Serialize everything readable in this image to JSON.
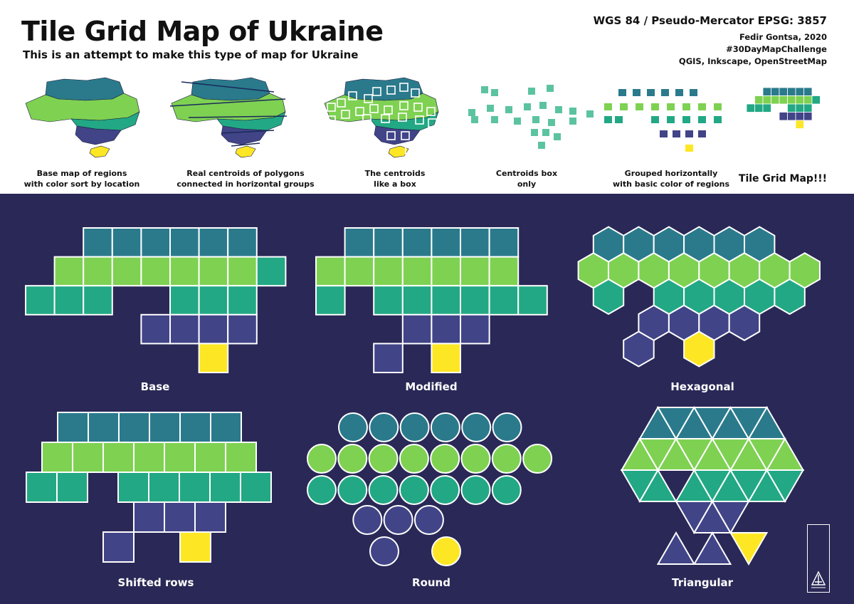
{
  "title": "Tile Grid Map of Ukraine",
  "subtitle": "This is an attempt to make this type of map for Ukraine",
  "credits": {
    "crs": "WGS 84 / Pseudo-Mercator EPSG: 3857",
    "author": "Fedir Gontsa, 2020",
    "challenge": "#30DayMapChallenge",
    "tools": "QGIS, Inkscape, OpenStreetMap"
  },
  "colors": {
    "north": "#2a7a8c",
    "central": "#7fd152",
    "west_south": "#22a884",
    "east_south": "#414487",
    "crimea": "#fde725",
    "background": "#2a2856",
    "tile_stroke": "#ffffff",
    "centroid_box": "#5cc3a0"
  },
  "process_steps": [
    {
      "line1": "Base map of regions",
      "line2": "with color sort by location"
    },
    {
      "line1": "Real centroids of polygons",
      "line2": "connected in horizontal groups"
    },
    {
      "line1": "The centroids",
      "line2": "like a box"
    },
    {
      "line1": "Centroids box",
      "line2": "only"
    },
    {
      "line1": "Grouped horizontally",
      "line2": "with basic color of regions"
    },
    {
      "line1": "Tile Grid Map!!!",
      "line2": ""
    }
  ],
  "variants": {
    "base": "Base",
    "modified": "Modified",
    "hexagonal": "Hexagonal",
    "shifted": "Shifted rows",
    "round": "Round",
    "triangular": "Triangular"
  }
}
